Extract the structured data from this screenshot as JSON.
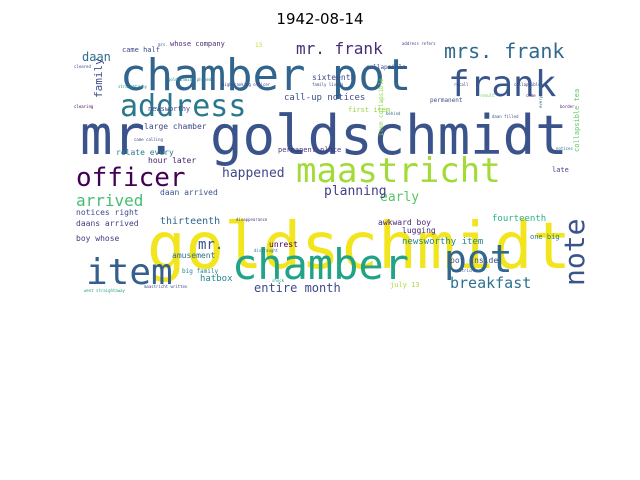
{
  "figure": {
    "title": "1942-08-14"
  },
  "chart_data": {
    "type": "wordcloud",
    "title": "1942-08-14",
    "background": "#ffffff",
    "colormap": "viridis",
    "words": [
      {
        "text": "goldschmidt",
        "color": "#f2e51d"
      },
      {
        "text": "mr. goldschmidt",
        "color": "#3a538b"
      },
      {
        "text": "chamber pot",
        "color": "#32658e"
      },
      {
        "text": "chamber",
        "color": "#20a386"
      },
      {
        "text": "item",
        "color": "#35608d"
      },
      {
        "text": "pot",
        "color": "#31688e"
      },
      {
        "text": "frank",
        "color": "#39568c"
      },
      {
        "text": "maastricht",
        "color": "#a2da37"
      },
      {
        "text": "address",
        "color": "#2a788e"
      },
      {
        "text": "officer",
        "color": "#440154"
      },
      {
        "text": "note",
        "color": "#3b528b"
      },
      {
        "text": "mrs. frank",
        "color": "#31688e"
      },
      {
        "text": "mr. frank",
        "color": "#472c7a"
      },
      {
        "text": "breakfast",
        "color": "#2c728e"
      },
      {
        "text": "arrived",
        "color": "#44bf70"
      },
      {
        "text": "early",
        "color": "#56c667"
      },
      {
        "text": "planning",
        "color": "#433e85"
      },
      {
        "text": "happened",
        "color": "#3f4889"
      },
      {
        "text": "entire month",
        "color": "#3e4989"
      },
      {
        "text": "daan",
        "color": "#2e6e8e"
      },
      {
        "text": "mr.",
        "color": "#3b528b"
      },
      {
        "text": "family",
        "color": "#3e4c8a"
      },
      {
        "text": "call-up notices",
        "color": "#3d4e8a"
      },
      {
        "text": "newsworthy item",
        "color": "#25858e"
      },
      {
        "text": "lugging",
        "color": "#482878"
      },
      {
        "text": "fourteenth",
        "color": "#2db27d"
      },
      {
        "text": "hatbox",
        "color": "#24868e"
      },
      {
        "text": "thirteenth",
        "color": "#31678e"
      },
      {
        "text": "unrest",
        "color": "#440154"
      },
      {
        "text": "hour later",
        "color": "#482173"
      },
      {
        "text": "large chamber",
        "color": "#414487"
      },
      {
        "text": "relate every",
        "color": "#287c8e"
      },
      {
        "text": "newsworthy",
        "color": "#3f4889"
      },
      {
        "text": "notices right",
        "color": "#3e4a89"
      },
      {
        "text": "daans arrived",
        "color": "#433d84"
      },
      {
        "text": "boy whose",
        "color": "#443983"
      },
      {
        "text": "daan arrived",
        "color": "#3b528b"
      },
      {
        "text": "amusement",
        "color": "#2e6f8e"
      },
      {
        "text": "awkward boy",
        "color": "#482475"
      },
      {
        "text": "pot inside",
        "color": "#3d4e8a"
      },
      {
        "text": "sixteenth",
        "color": "#3e4a89"
      },
      {
        "text": "came half",
        "color": "#3f4889"
      },
      {
        "text": "whose company",
        "color": "#472c7a"
      },
      {
        "text": "permanent place",
        "color": "#453781"
      },
      {
        "text": "collapsible",
        "color": "#3e4c8a"
      },
      {
        "text": "first item",
        "color": "#95d840"
      },
      {
        "text": "one big",
        "color": "#2a788e"
      },
      {
        "text": "permanent",
        "color": "#3b528b"
      },
      {
        "text": "big family",
        "color": "#25848e"
      },
      {
        "text": "july 13",
        "color": "#a8db34"
      },
      {
        "text": "late",
        "color": "#3f4788"
      },
      {
        "text": "collapsible tea",
        "color": "#5ec962"
      },
      {
        "text": "item collapsible",
        "color": "#8bd646"
      },
      {
        "text": "13",
        "color": "#c2df23"
      },
      {
        "text": "disappearance",
        "color": "#443983"
      },
      {
        "text": "maastricht written",
        "color": "#3e4c8a"
      },
      {
        "text": "went straightaway",
        "color": "#20a486"
      },
      {
        "text": "mrs.",
        "color": "#3a548c"
      },
      {
        "text": "came",
        "color": "#471365"
      },
      {
        "text": "collapsible",
        "color": "#46327e"
      },
      {
        "text": "maastricht",
        "color": "#3b528b"
      },
      {
        "text": "straightaway",
        "color": "#21918c"
      },
      {
        "text": "goldschmidt phoned",
        "color": "#23888e"
      },
      {
        "text": "high-ranking officer",
        "color": "#433e85"
      },
      {
        "text": "family living",
        "color": "#3e4c8a"
      },
      {
        "text": "recall",
        "color": "#443983"
      },
      {
        "text": "clearing",
        "color": "#440154"
      },
      {
        "text": "behind",
        "color": "#31688e"
      },
      {
        "text": "result",
        "color": "#5ec962"
      },
      {
        "text": "distraught",
        "color": "#2e6e8e"
      },
      {
        "text": "daan filled",
        "color": "#3b528b"
      },
      {
        "text": "border",
        "color": "#481b6d"
      },
      {
        "text": "every detail",
        "color": "#2c728e"
      },
      {
        "text": "notices",
        "color": "#2c738e"
      },
      {
        "text": "cleared",
        "color": "#3e4a89"
      },
      {
        "text": "address refers",
        "color": "#404387"
      },
      {
        "text": "came calling",
        "color": "#3e4a89"
      },
      {
        "text": "shock",
        "color": "#1fa187"
      }
    ]
  }
}
